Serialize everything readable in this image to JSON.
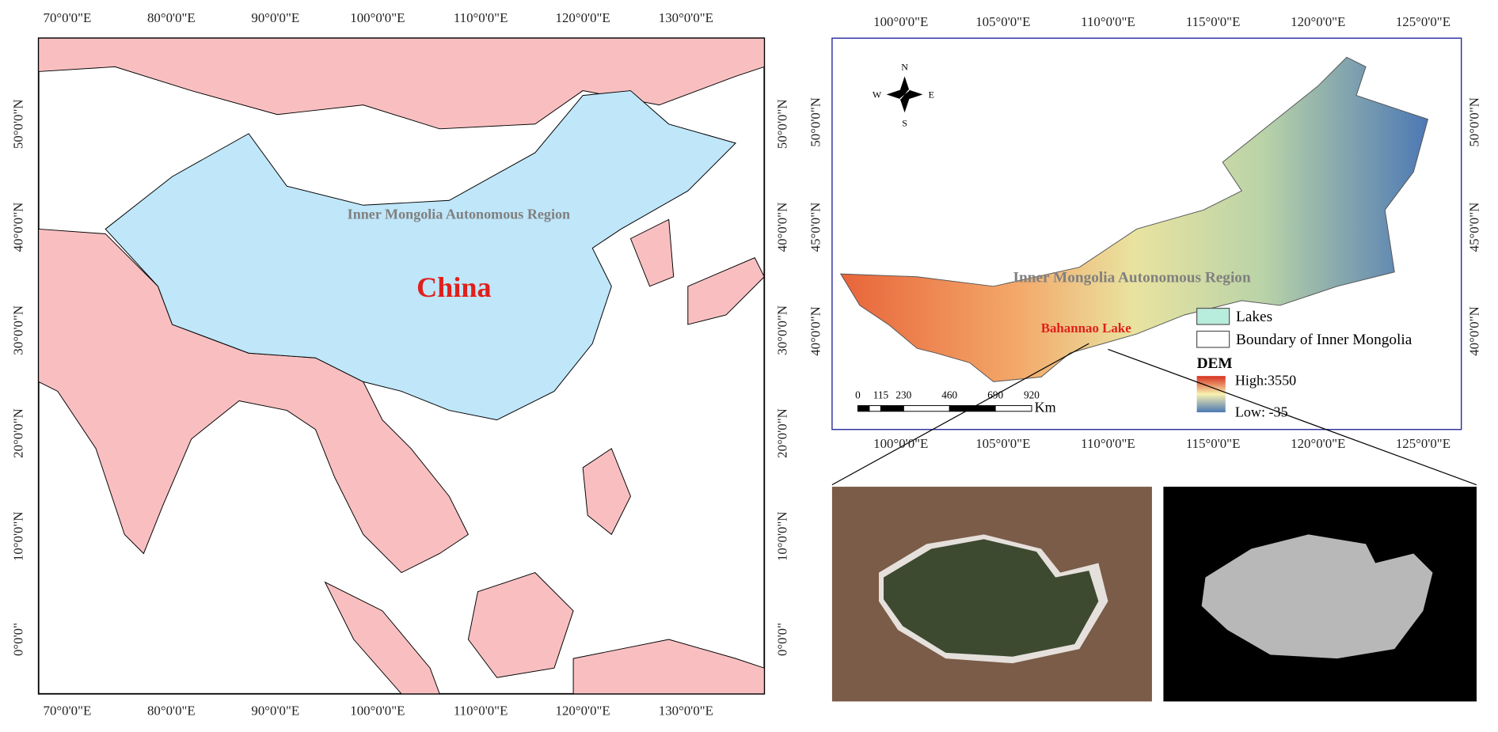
{
  "left_map": {
    "x_labels": [
      "70°0'0\"E",
      "80°0'0\"E",
      "90°0'0\"E",
      "100°0'0\"E",
      "110°0'0\"E",
      "120°0'0\"E",
      "130°0'0\"E"
    ],
    "y_labels": [
      "50°0'0\"N",
      "40°0'0\"N",
      "30°0'0\"N",
      "20°0'0\"N",
      "10°0'0\"N",
      "0°0'0\""
    ],
    "region_label": "Inner Mongolia Autonomous Region",
    "country_label": "China"
  },
  "right_map": {
    "x_labels": [
      "100°0'0\"E",
      "105°0'0\"E",
      "110°0'0\"E",
      "115°0'0\"E",
      "120°0'0\"E",
      "125°0'0\"E"
    ],
    "y_labels": [
      "50°0'0\"N",
      "45°0'0\"N",
      "40°0'0\"N"
    ],
    "compass": {
      "north": "N",
      "south": "S",
      "west": "W",
      "east": "E"
    },
    "region_label": "Inner Mongolia Autonomous Region",
    "lake_label": "Bahannao Lake",
    "legend": {
      "lakes": "Lakes",
      "boundary": "Boundary of Inner Mongolia",
      "dem_title": "DEM",
      "high": "High:3550",
      "low": "Low: -35"
    },
    "scale_bar": {
      "labels": [
        "0",
        "115",
        "230",
        "460",
        "690",
        "920"
      ],
      "unit": "Km"
    }
  }
}
